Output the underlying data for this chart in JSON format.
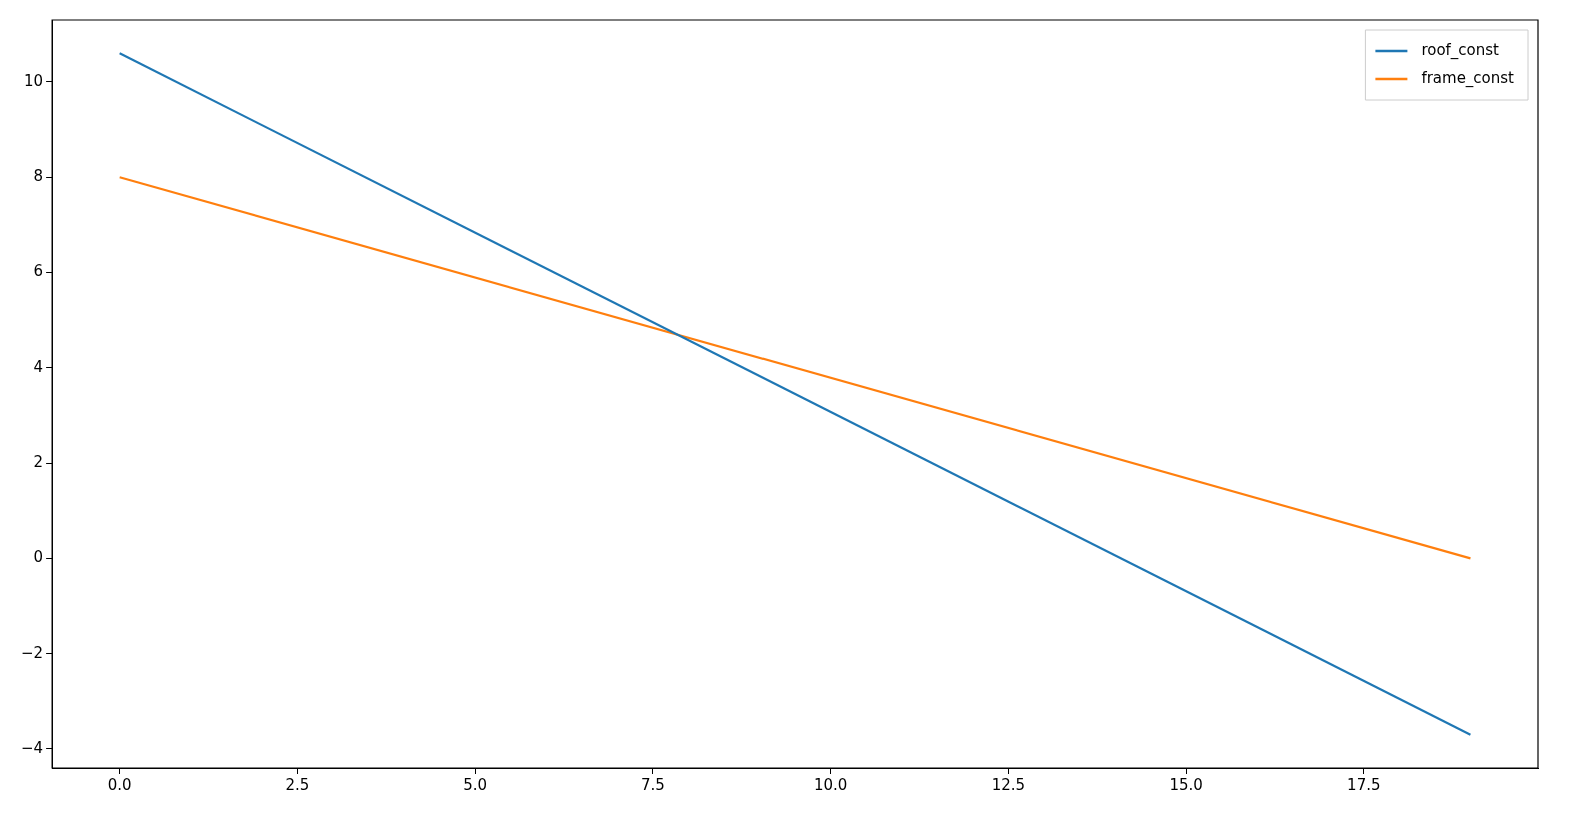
{
  "chart_data": {
    "type": "line",
    "x": [
      0,
      19
    ],
    "series": [
      {
        "name": "roof_const",
        "color": "#1f77b4",
        "values": [
          10.6,
          -3.7
        ]
      },
      {
        "name": "frame_const",
        "color": "#ff7f0e",
        "values": [
          8,
          0
        ]
      }
    ],
    "xlim": [
      -0.95,
      19.95
    ],
    "xticks": [
      {
        "value": 0,
        "label": "0.0"
      },
      {
        "value": 2.5,
        "label": "2.5"
      },
      {
        "value": 5,
        "label": "5.0"
      },
      {
        "value": 7.5,
        "label": "7.5"
      },
      {
        "value": 10,
        "label": "10.0"
      },
      {
        "value": 12.5,
        "label": "12.5"
      },
      {
        "value": 15,
        "label": "15.0"
      },
      {
        "value": 17.5,
        "label": "17.5"
      }
    ],
    "ylim": [
      -4.4,
      11.3
    ],
    "yticks": [
      {
        "value": -4,
        "label": "−4"
      },
      {
        "value": -2,
        "label": "−2"
      },
      0,
      2,
      4,
      6,
      8,
      10
    ],
    "grid": false,
    "legend": "top right",
    "marker": "none",
    "line_style": "solid"
  }
}
